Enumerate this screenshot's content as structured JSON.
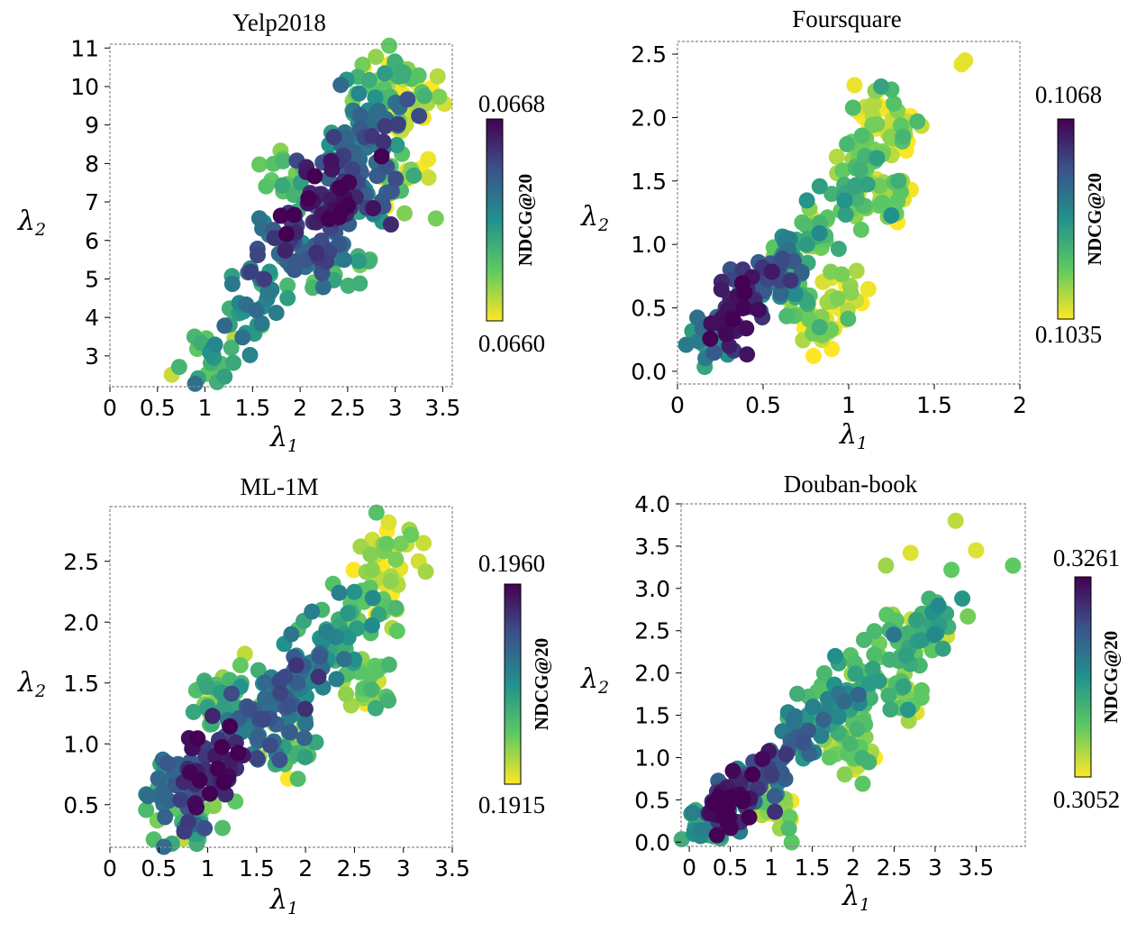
{
  "figure": {
    "colormap": [
      "#fde725",
      "#5ec962",
      "#21918c",
      "#3b528b",
      "#440154"
    ]
  },
  "chart_data": [
    {
      "type": "scatter",
      "title": "Yelp2018",
      "xlabel": "λ1",
      "ylabel": "λ2",
      "xlim": [
        0,
        3.6
      ],
      "ylim": [
        2.2,
        11.1
      ],
      "xticks": [
        0,
        0.5,
        1,
        1.5,
        2,
        2.5,
        3,
        3.5
      ],
      "xtick_labels": [
        "0",
        "0.5",
        "1",
        "1.5",
        "2",
        "2.5",
        "3",
        "3.5"
      ],
      "yticks": [
        3,
        4,
        5,
        6,
        7,
        8,
        9,
        10,
        11
      ],
      "ytick_labels": [
        "3",
        "4",
        "5",
        "6",
        "7",
        "8",
        "9",
        "10",
        "11"
      ],
      "colorbar": {
        "label": "NDCG@20",
        "max_label": "0.0668",
        "min_label": "0.0660"
      },
      "n_points": 380,
      "center": [
        2.35,
        7.0
      ],
      "clusters": [
        [
          1.05,
          2.75,
          0.7
        ],
        [
          1.4,
          3.8,
          0.55
        ],
        [
          1.7,
          5.0,
          0.45
        ],
        [
          1.9,
          6.0,
          0.28
        ],
        [
          2.1,
          6.6,
          0.15
        ],
        [
          2.35,
          7.0,
          0.08
        ],
        [
          2.5,
          7.7,
          0.2
        ],
        [
          2.6,
          8.6,
          0.35
        ],
        [
          2.75,
          9.4,
          0.45
        ],
        [
          2.9,
          10.2,
          0.75
        ],
        [
          3.1,
          9.6,
          0.9
        ],
        [
          2.2,
          5.5,
          0.35
        ],
        [
          2.8,
          7.3,
          0.3
        ],
        [
          1.8,
          7.4,
          0.7
        ],
        [
          3.05,
          7.5,
          0.85
        ],
        [
          2.4,
          5.3,
          0.7
        ]
      ],
      "spread": [
        0.2,
        0.45
      ]
    },
    {
      "type": "scatter",
      "title": "Foursquare",
      "xlabel": "λ1",
      "ylabel": "λ2",
      "xlim": [
        0,
        2.0
      ],
      "ylim": [
        -0.1,
        2.6
      ],
      "xticks": [
        0,
        0.5,
        1,
        1.5,
        2
      ],
      "xtick_labels": [
        "0",
        "0.5",
        "1",
        "1.5",
        "2"
      ],
      "yticks": [
        0,
        0.5,
        1,
        1.5,
        2,
        2.5
      ],
      "ytick_labels": [
        "0.0",
        "0.5",
        "1.0",
        "1.5",
        "2.0",
        "2.5"
      ],
      "colorbar": {
        "label": "NDCG@20",
        "max_label": "0.1068",
        "min_label": "0.1035"
      },
      "n_points": 360,
      "center": [
        0.32,
        0.4
      ],
      "clusters": [
        [
          0.3,
          0.38,
          0.05
        ],
        [
          0.35,
          0.55,
          0.15
        ],
        [
          0.45,
          0.6,
          0.25
        ],
        [
          0.55,
          0.8,
          0.35
        ],
        [
          0.65,
          0.95,
          0.5
        ],
        [
          0.2,
          0.25,
          0.45
        ],
        [
          0.7,
          0.55,
          0.7
        ],
        [
          0.8,
          1.1,
          0.75
        ],
        [
          1.0,
          1.4,
          0.65
        ],
        [
          1.1,
          1.75,
          0.8
        ],
        [
          1.25,
          1.35,
          0.85
        ],
        [
          1.15,
          2.05,
          0.95
        ],
        [
          1.3,
          1.95,
          0.9
        ],
        [
          0.85,
          0.35,
          0.9
        ],
        [
          0.95,
          0.65,
          0.95
        ]
      ],
      "spread": [
        0.06,
        0.1
      ],
      "extra_points": [
        [
          1.66,
          2.42,
          0.97
        ],
        [
          1.68,
          2.45,
          0.96
        ]
      ]
    },
    {
      "type": "scatter",
      "title": "ML-1M",
      "xlabel": "λ1",
      "ylabel": "λ2",
      "xlim": [
        0,
        3.5
      ],
      "ylim": [
        0.15,
        2.95
      ],
      "xticks": [
        0,
        0.5,
        1,
        1.5,
        2,
        2.5,
        3,
        3.5
      ],
      "xtick_labels": [
        "0",
        "0.5",
        "1",
        "1.5",
        "2",
        "2.5",
        "3",
        "3.5"
      ],
      "yticks": [
        0.5,
        1,
        1.5,
        2,
        2.5
      ],
      "ytick_labels": [
        "0.5",
        "1.0",
        "1.5",
        "2.0",
        "2.5"
      ],
      "colorbar": {
        "label": "NDCG@20",
        "max_label": "0.1960",
        "min_label": "0.1915"
      },
      "n_points": 400,
      "center": [
        0.97,
        0.75
      ],
      "clusters": [
        [
          0.95,
          0.72,
          0.1
        ],
        [
          1.2,
          0.85,
          0.2
        ],
        [
          1.5,
          1.1,
          0.3
        ],
        [
          1.75,
          1.35,
          0.38
        ],
        [
          2.0,
          1.55,
          0.45
        ],
        [
          2.3,
          1.85,
          0.55
        ],
        [
          2.6,
          2.2,
          0.7
        ],
        [
          2.85,
          2.55,
          0.85
        ],
        [
          0.7,
          0.55,
          0.35
        ],
        [
          1.1,
          1.35,
          0.75
        ],
        [
          1.9,
          0.95,
          0.7
        ],
        [
          2.6,
          1.5,
          0.8
        ],
        [
          0.85,
          0.35,
          0.7
        ]
      ],
      "spread": [
        0.17,
        0.16
      ],
      "extra_points": [
        [
          0.75,
          0.22,
          0.9
        ],
        [
          2.85,
          2.82,
          0.95
        ]
      ]
    },
    {
      "type": "scatter",
      "title": "Douban-book",
      "xlabel": "λ1",
      "ylabel": "λ2",
      "xlim": [
        -0.1,
        4.1
      ],
      "ylim": [
        -0.05,
        4.0
      ],
      "xticks": [
        0,
        0.5,
        1,
        1.5,
        2,
        2.5,
        3,
        3.5
      ],
      "xtick_labels": [
        "0",
        "0.5",
        "1",
        "1.5",
        "2",
        "2.5",
        "3",
        "3.5"
      ],
      "yticks": [
        0,
        0.5,
        1,
        1.5,
        2,
        2.5,
        3,
        3.5,
        4
      ],
      "ytick_labels": [
        "0.0",
        "0.5",
        "1.0",
        "1.5",
        "2.0",
        "2.5",
        "3.0",
        "3.5",
        "4.0"
      ],
      "colorbar": {
        "label": "NDCG@20",
        "max_label": "0.3261",
        "min_label": "0.3052"
      },
      "n_points": 380,
      "center": [
        0.45,
        0.38
      ],
      "clusters": [
        [
          0.45,
          0.4,
          0.08
        ],
        [
          0.55,
          0.5,
          0.15
        ],
        [
          0.75,
          0.7,
          0.25
        ],
        [
          1.0,
          0.9,
          0.35
        ],
        [
          1.3,
          1.2,
          0.45
        ],
        [
          1.6,
          1.55,
          0.55
        ],
        [
          1.9,
          1.7,
          0.6
        ],
        [
          2.2,
          2.0,
          0.65
        ],
        [
          2.6,
          2.4,
          0.7
        ],
        [
          3.0,
          2.6,
          0.7
        ],
        [
          0.25,
          0.2,
          0.5
        ],
        [
          1.0,
          0.4,
          0.85
        ],
        [
          2.0,
          1.1,
          0.85
        ],
        [
          2.6,
          1.8,
          0.75
        ]
      ],
      "spread": [
        0.16,
        0.16
      ],
      "extra_points": [
        [
          3.25,
          3.8,
          0.9
        ],
        [
          3.5,
          3.45,
          0.95
        ],
        [
          3.95,
          3.27,
          0.75
        ],
        [
          2.7,
          3.42,
          0.95
        ],
        [
          3.2,
          3.22,
          0.75
        ],
        [
          2.4,
          3.27,
          0.85
        ]
      ]
    }
  ]
}
